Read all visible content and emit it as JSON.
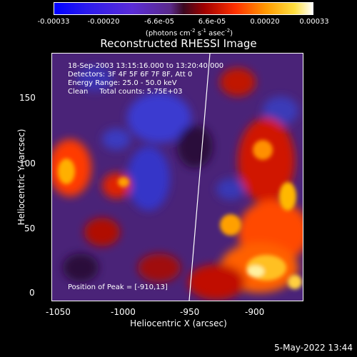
{
  "colorbar": {
    "tick_labels": [
      "-0.00033",
      "-0.00020",
      "-6.6e-05",
      "6.6e-05",
      "0.00020",
      "0.00033"
    ],
    "units_parts": [
      "(photons cm",
      "-2",
      " s",
      "-1",
      " asec",
      "-2",
      ")"
    ]
  },
  "title": "Reconstructed RHESSI Image",
  "info": {
    "line1": "18-Sep-2003 13:15:16.000 to 13:20:40.000",
    "line2": "Detectors: 3F 4F 5F 6F 7F 8F, Att 0",
    "line3": "Energy Range: 25.0 - 50.0 keV",
    "line4": "Clean     Total counts: 5.75E+03",
    "peak": "Position of Peak = [-910,13]"
  },
  "axes": {
    "x_label": "Heliocentric X (arcsec)",
    "y_label": "Heliocentric Y (arcsec)",
    "x_ticks": [
      "-1050",
      "-1000",
      "-950",
      "-900"
    ],
    "y_ticks": [
      "0",
      "50",
      "100",
      "150"
    ]
  },
  "footer": "5-May-2022 13:44"
}
